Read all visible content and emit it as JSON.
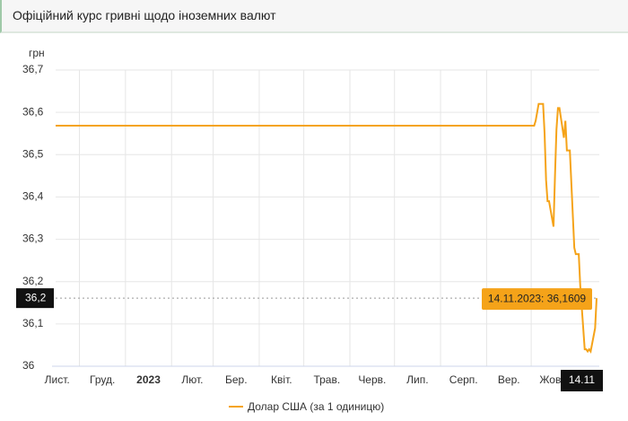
{
  "header": {
    "title": "Офіційний курс гривні щодо іноземних валют"
  },
  "chart_data": {
    "type": "line",
    "y_label": "грн",
    "x": [
      "15.11.2022",
      "02.10.2023",
      "03.10.2023",
      "04.10.2023",
      "05.10.2023",
      "06.10.2023",
      "09.10.2023",
      "10.10.2023",
      "11.10.2023",
      "12.10.2023",
      "13.10.2023",
      "16.10.2023",
      "17.10.2023",
      "18.10.2023",
      "19.10.2023",
      "20.10.2023",
      "23.10.2023",
      "24.10.2023",
      "25.10.2023",
      "26.10.2023",
      "27.10.2023",
      "30.10.2023",
      "31.10.2023",
      "01.11.2023",
      "02.11.2023",
      "03.11.2023",
      "06.11.2023",
      "07.11.2023",
      "08.11.2023",
      "09.11.2023",
      "10.11.2023",
      "13.11.2023",
      "14.11.2023"
    ],
    "series": [
      {
        "name": "Долар США (за 1 одиницю)",
        "color": "#f5a319",
        "values": [
          36.5686,
          36.5686,
          36.5686,
          36.58,
          36.6,
          36.62,
          36.62,
          36.55,
          36.44,
          36.39,
          36.39,
          36.33,
          36.45,
          36.56,
          36.61,
          36.61,
          36.54,
          36.58,
          36.51,
          36.51,
          36.51,
          36.28,
          36.265,
          36.265,
          36.265,
          36.19,
          36.04,
          36.04,
          36.035,
          36.04,
          36.035,
          36.09,
          36.1609
        ]
      }
    ],
    "xlim": [
      "15.11.2022",
      "14.11.2023"
    ],
    "xticks": [
      {
        "value": "01.11.2022",
        "label": "Лист."
      },
      {
        "value": "01.12.2022",
        "label": "Груд."
      },
      {
        "value": "01.01.2023",
        "label": "2023"
      },
      {
        "value": "01.02.2023",
        "label": "Лют."
      },
      {
        "value": "01.03.2023",
        "label": "Бер."
      },
      {
        "value": "01.04.2023",
        "label": "Квіт."
      },
      {
        "value": "01.05.2023",
        "label": "Трав."
      },
      {
        "value": "01.06.2023",
        "label": "Черв."
      },
      {
        "value": "01.07.2023",
        "label": "Лип."
      },
      {
        "value": "01.08.2023",
        "label": "Серп."
      },
      {
        "value": "01.09.2023",
        "label": "Вер."
      },
      {
        "value": "01.10.2023",
        "label": "Жовт."
      }
    ],
    "ylim": [
      36,
      36.7
    ],
    "yticks": [
      36,
      {
        "value": 36.1,
        "label": "36,1"
      },
      {
        "value": 36.2,
        "label": "36,2"
      },
      {
        "value": 36.3,
        "label": "36,3"
      },
      {
        "value": 36.4,
        "label": "36,4"
      },
      {
        "value": 36.5,
        "label": "36,5"
      },
      {
        "value": 36.6,
        "label": "36,6"
      },
      {
        "value": 36.7,
        "label": "36,7"
      }
    ],
    "grid": true,
    "crosshair": {
      "x_label": "14.11",
      "y_label": "36,2",
      "tooltip": "14.11.2023: 36,1609"
    }
  }
}
